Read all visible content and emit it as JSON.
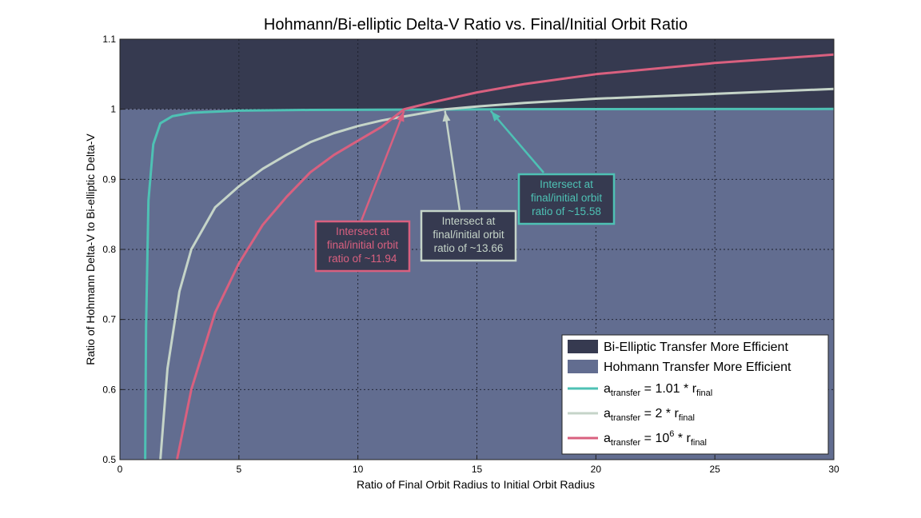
{
  "chart_data": {
    "type": "line",
    "title": "Hohmann/Bi-elliptic Delta-V Ratio vs. Final/Initial Orbit Ratio",
    "xlabel": "Ratio of Final Orbit Radius to Initial Orbit Radius",
    "ylabel": "Ratio of Hohmann Delta-V to Bi-elliptic Delta-V",
    "xlim": [
      0,
      30
    ],
    "ylim": [
      0.5,
      1.1
    ],
    "x_ticks": [
      "0",
      "5",
      "10",
      "15",
      "20",
      "25",
      "30"
    ],
    "y_ticks": [
      "0.5",
      "0.6",
      "0.7",
      "0.8",
      "0.9",
      "1",
      "1.1"
    ],
    "grid": true,
    "legend_position": "bottom-right",
    "regions": [
      {
        "label": "Bi-Elliptic Transfer More Efficient",
        "y_range": [
          1.0,
          1.1
        ],
        "color": "#363a50"
      },
      {
        "label": "Hohmann Transfer More Efficient",
        "y_range": [
          0.5,
          1.0
        ],
        "color": "#626d90"
      }
    ],
    "series": [
      {
        "legend": {
          "base": "a",
          "base_sub": "transfer",
          "mid": " = 1.01 * r",
          "sup": "",
          "end_sub": "final"
        },
        "color": "#4ec1b4",
        "points": [
          [
            1.06,
            0.5
          ],
          [
            1.1,
            0.69
          ],
          [
            1.2,
            0.87
          ],
          [
            1.4,
            0.95
          ],
          [
            1.7,
            0.98
          ],
          [
            2.2,
            0.99
          ],
          [
            3,
            0.995
          ],
          [
            5,
            0.998
          ],
          [
            8,
            0.999
          ],
          [
            12,
            0.9995
          ],
          [
            15.58,
            1.0
          ],
          [
            20,
            1.0002
          ],
          [
            25,
            1.0003
          ],
          [
            30,
            1.0004
          ]
        ]
      },
      {
        "legend": {
          "base": "a",
          "base_sub": "transfer",
          "mid": " = 2 * r",
          "sup": "",
          "end_sub": "final"
        },
        "color": "#c5d4c8",
        "points": [
          [
            1.7,
            0.5
          ],
          [
            2,
            0.63
          ],
          [
            2.5,
            0.74
          ],
          [
            3,
            0.8
          ],
          [
            4,
            0.86
          ],
          [
            5,
            0.89
          ],
          [
            6,
            0.915
          ],
          [
            7,
            0.935
          ],
          [
            8,
            0.953
          ],
          [
            9,
            0.966
          ],
          [
            10,
            0.976
          ],
          [
            11,
            0.984
          ],
          [
            12,
            0.99
          ],
          [
            13.66,
            1.0
          ],
          [
            15,
            1.004
          ],
          [
            17,
            1.009
          ],
          [
            20,
            1.015
          ],
          [
            25,
            1.022
          ],
          [
            30,
            1.029
          ]
        ]
      },
      {
        "legend": {
          "base": "a",
          "base_sub": "transfer",
          "mid": " = 10",
          "sup": "6",
          "mid2": " * r",
          "end_sub": "final"
        },
        "color": "#d9607f",
        "points": [
          [
            2.4,
            0.5
          ],
          [
            3,
            0.6
          ],
          [
            4,
            0.71
          ],
          [
            5,
            0.78
          ],
          [
            6,
            0.835
          ],
          [
            7,
            0.875
          ],
          [
            8,
            0.91
          ],
          [
            9,
            0.935
          ],
          [
            10,
            0.955
          ],
          [
            11,
            0.975
          ],
          [
            11.94,
            1.0
          ],
          [
            13,
            1.009
          ],
          [
            15,
            1.024
          ],
          [
            17,
            1.036
          ],
          [
            20,
            1.05
          ],
          [
            25,
            1.066
          ],
          [
            30,
            1.078
          ]
        ]
      }
    ],
    "annotations": [
      {
        "lines": [
          "Intersect at",
          "final/initial orbit",
          "ratio of ~11.94"
        ],
        "color": "#d9607f",
        "target": [
          11.94,
          1.0
        ]
      },
      {
        "lines": [
          "Intersect at",
          "final/initial orbit",
          "ratio of ~13.66"
        ],
        "color": "#c5d4c8",
        "target": [
          13.66,
          1.0
        ]
      },
      {
        "lines": [
          "Intersect at",
          "final/initial orbit",
          "ratio of ~15.58"
        ],
        "color": "#4ec1b4",
        "target": [
          15.58,
          1.0
        ]
      }
    ]
  }
}
